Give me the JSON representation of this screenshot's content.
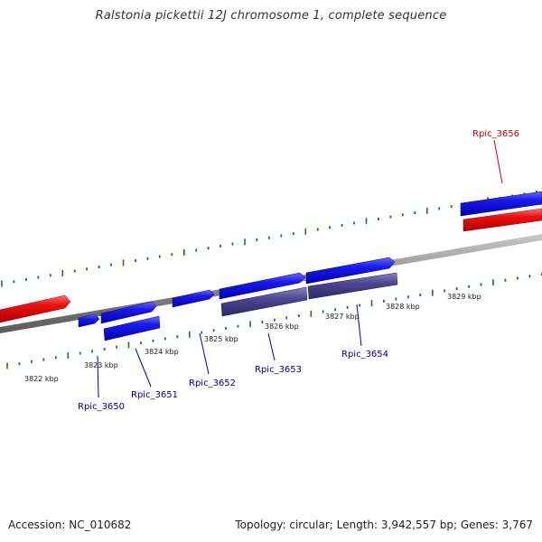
{
  "title": "Ralstonia pickettii 12J chromosome 1, complete sequence",
  "footer": {
    "accession": "Accession: NC_010682",
    "summary": "Topology: circular; Length: 3,942,557 bp; Genes: 3,767"
  },
  "scale_labels": [
    "3822 kbp",
    "3823 kbp",
    "3824 kbp",
    "3825 kbp",
    "3826 kbp",
    "3827 kbp",
    "3828 kbp",
    "3829 kbp"
  ],
  "genes": [
    {
      "name": "Rpic_3650",
      "color": "#000099"
    },
    {
      "name": "Rpic_3651",
      "color": "#000099"
    },
    {
      "name": "Rpic_3652",
      "color": "#000099"
    },
    {
      "name": "Rpic_3653",
      "color": "#000099"
    },
    {
      "name": "Rpic_3654",
      "color": "#000099"
    },
    {
      "name": "Rpic_3656",
      "color": "#cc0000"
    }
  ],
  "colors": {
    "forward_feature": "#1010ee",
    "reverse_feature": "#ee1010",
    "rna_feature": "#4a3f8a",
    "backbone": "#808080",
    "tick": "#1a7a1a"
  }
}
